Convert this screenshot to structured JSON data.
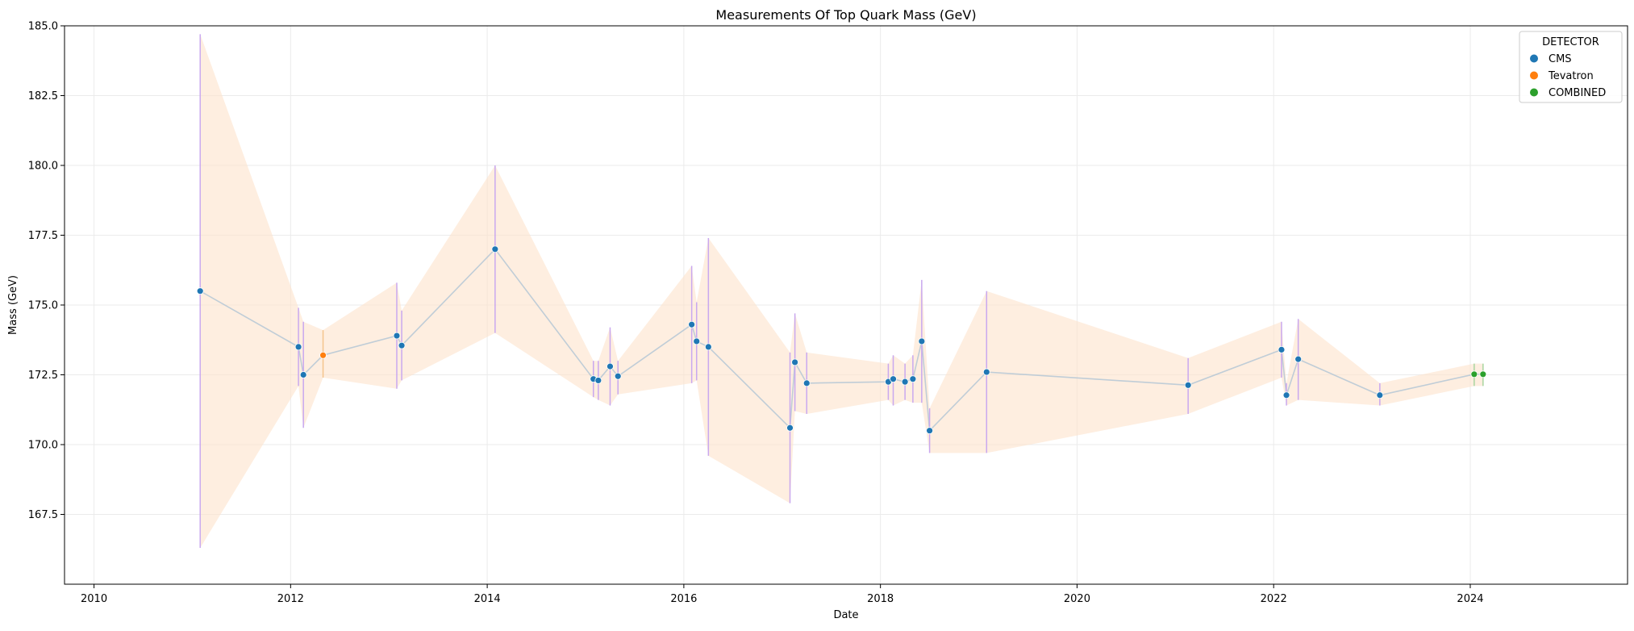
{
  "chart_data": {
    "type": "scatter",
    "title": "Measurements Of Top Quark Mass (GeV)",
    "xlabel": "Date",
    "ylabel": "Mass (GeV)",
    "xlim": [
      2009.7,
      2025.6
    ],
    "ylim": [
      165.0,
      185.0
    ],
    "x_ticks": [
      2010,
      2012,
      2014,
      2016,
      2018,
      2020,
      2022,
      2024
    ],
    "y_ticks": [
      167.5,
      170.0,
      172.5,
      175.0,
      177.5,
      180.0,
      182.5,
      185.0
    ],
    "y_tick_labels": [
      "167.5",
      "170.0",
      "172.5",
      "175.0",
      "177.5",
      "180.0",
      "182.5",
      "185.0"
    ],
    "grid": true,
    "legend": {
      "title": "DETECTOR",
      "placement": "top-right",
      "entries": [
        {
          "name": "CMS",
          "color": "#1f77b4"
        },
        {
          "name": "Tevatron",
          "color": "#ff7f0e"
        },
        {
          "name": "COMBINED",
          "color": "#2ca02c"
        }
      ]
    },
    "colors": {
      "band": "#fde3cb",
      "line": "#b0c4d4",
      "errorbar": "#c9a8ef",
      "errorbar_tevatron": "#f4c48c",
      "errorbar_combined": "#a8d5a0"
    },
    "points": [
      {
        "x": 2011.08,
        "y": 175.5,
        "lo": 166.3,
        "hi": 184.7,
        "detector": "CMS"
      },
      {
        "x": 2012.08,
        "y": 173.5,
        "lo": 172.1,
        "hi": 174.9,
        "detector": "CMS"
      },
      {
        "x": 2012.13,
        "y": 172.5,
        "lo": 170.6,
        "hi": 174.4,
        "detector": "CMS"
      },
      {
        "x": 2012.33,
        "y": 173.2,
        "lo": 172.4,
        "hi": 174.1,
        "detector": "Tevatron"
      },
      {
        "x": 2013.08,
        "y": 173.9,
        "lo": 172.0,
        "hi": 175.8,
        "detector": "CMS"
      },
      {
        "x": 2013.13,
        "y": 173.55,
        "lo": 172.3,
        "hi": 174.8,
        "detector": "CMS"
      },
      {
        "x": 2014.08,
        "y": 177.0,
        "lo": 174.0,
        "hi": 180.0,
        "detector": "CMS"
      },
      {
        "x": 2015.08,
        "y": 172.35,
        "lo": 171.7,
        "hi": 173.0,
        "detector": "CMS"
      },
      {
        "x": 2015.13,
        "y": 172.3,
        "lo": 171.6,
        "hi": 173.0,
        "detector": "CMS"
      },
      {
        "x": 2015.25,
        "y": 172.8,
        "lo": 171.4,
        "hi": 174.2,
        "detector": "CMS"
      },
      {
        "x": 2015.33,
        "y": 172.45,
        "lo": 171.8,
        "hi": 173.0,
        "detector": "CMS"
      },
      {
        "x": 2016.08,
        "y": 174.3,
        "lo": 172.2,
        "hi": 176.4,
        "detector": "CMS"
      },
      {
        "x": 2016.13,
        "y": 173.7,
        "lo": 172.3,
        "hi": 175.1,
        "detector": "CMS"
      },
      {
        "x": 2016.25,
        "y": 173.5,
        "lo": 169.6,
        "hi": 177.4,
        "detector": "CMS"
      },
      {
        "x": 2017.08,
        "y": 170.6,
        "lo": 167.9,
        "hi": 173.3,
        "detector": "CMS"
      },
      {
        "x": 2017.13,
        "y": 172.95,
        "lo": 171.2,
        "hi": 174.7,
        "detector": "CMS"
      },
      {
        "x": 2017.25,
        "y": 172.2,
        "lo": 171.1,
        "hi": 173.3,
        "detector": "CMS"
      },
      {
        "x": 2018.08,
        "y": 172.25,
        "lo": 171.6,
        "hi": 172.9,
        "detector": "CMS"
      },
      {
        "x": 2018.13,
        "y": 172.35,
        "lo": 171.4,
        "hi": 173.2,
        "detector": "CMS"
      },
      {
        "x": 2018.25,
        "y": 172.25,
        "lo": 171.6,
        "hi": 172.9,
        "detector": "CMS"
      },
      {
        "x": 2018.33,
        "y": 172.35,
        "lo": 171.5,
        "hi": 173.2,
        "detector": "CMS"
      },
      {
        "x": 2018.42,
        "y": 173.7,
        "lo": 171.5,
        "hi": 175.9,
        "detector": "CMS"
      },
      {
        "x": 2018.5,
        "y": 170.5,
        "lo": 169.7,
        "hi": 171.3,
        "detector": "CMS"
      },
      {
        "x": 2019.08,
        "y": 172.6,
        "lo": 169.7,
        "hi": 175.5,
        "detector": "CMS"
      },
      {
        "x": 2021.13,
        "y": 172.13,
        "lo": 171.1,
        "hi": 173.1,
        "detector": "CMS"
      },
      {
        "x": 2022.08,
        "y": 173.4,
        "lo": 172.4,
        "hi": 174.4,
        "detector": "CMS"
      },
      {
        "x": 2022.13,
        "y": 171.77,
        "lo": 171.4,
        "hi": 172.2,
        "detector": "CMS"
      },
      {
        "x": 2022.25,
        "y": 173.06,
        "lo": 171.6,
        "hi": 174.5,
        "detector": "CMS"
      },
      {
        "x": 2023.08,
        "y": 171.77,
        "lo": 171.4,
        "hi": 172.2,
        "detector": "CMS"
      },
      {
        "x": 2024.04,
        "y": 172.52,
        "lo": 172.1,
        "hi": 172.9,
        "detector": "COMBINED"
      },
      {
        "x": 2024.13,
        "y": 172.52,
        "lo": 172.1,
        "hi": 172.9,
        "detector": "COMBINED"
      }
    ]
  }
}
